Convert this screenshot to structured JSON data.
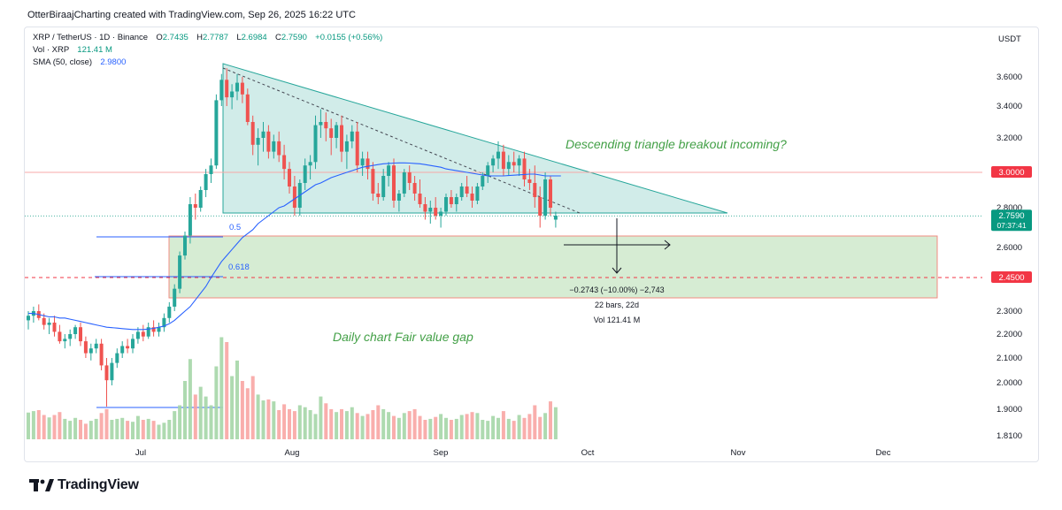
{
  "header": {
    "title": "OtterBiraajCharting created with TradingView.com, Sep 26, 2025 16:22 UTC"
  },
  "legend": {
    "symbol": "XRP / TetherUS · 1D · Binance",
    "o_label": "O",
    "o": "2.7435",
    "h_label": "H",
    "h": "2.7787",
    "l_label": "L",
    "l": "2.6984",
    "c_label": "C",
    "c": "2.7590",
    "change": "+0.0155 (+0.56%)",
    "vol_label": "Vol · XRP",
    "vol_value": "121.41 M",
    "sma_label": "SMA (50, close)",
    "sma_value": "2.9800"
  },
  "branding": {
    "name": "TradingView"
  },
  "colors": {
    "up": "#26a69a",
    "down": "#ef5350",
    "sma": "#2962ff",
    "triangle": "#26a69a",
    "fvg": "#b7e1b4",
    "level": "#f23645"
  },
  "chart_data": {
    "type": "candlestick",
    "currency": "USDT",
    "x_ticks": [
      "Jul",
      "Aug",
      "Sep",
      "Oct",
      "Nov",
      "Dec"
    ],
    "y_ticks": [
      "3.6000",
      "3.4000",
      "3.2000",
      "2.8000",
      "2.6000",
      "2.3000",
      "2.2000",
      "2.1000",
      "2.0000",
      "1.9000",
      "1.8100"
    ],
    "y_tick_values": [
      3.6,
      3.4,
      3.2,
      2.8,
      2.6,
      2.3,
      2.2,
      2.1,
      2.0,
      1.9,
      1.81
    ],
    "price_labels": [
      {
        "value": "3.0000",
        "price": 3.0
      },
      {
        "value": "2.7590",
        "price": 2.759,
        "sub": "07:37:41"
      },
      {
        "value": "2.4500",
        "price": 2.45
      }
    ],
    "fib_levels": [
      {
        "label": "0.5",
        "price": 2.65
      },
      {
        "label": "0.618",
        "price": 2.45
      }
    ],
    "measure": {
      "line1": "−0.2743 (−10.00%) −2,743",
      "line2": "22 bars, 22d",
      "line3": "Vol 121.41 M"
    },
    "annotations": {
      "triangle": "Descending triangle breakout incoming?",
      "fvg": "Daily chart Fair value gap"
    },
    "candles": [
      [
        2.26,
        2.3,
        2.22,
        2.28
      ],
      [
        2.28,
        2.32,
        2.25,
        2.3
      ],
      [
        2.3,
        2.33,
        2.26,
        2.27
      ],
      [
        2.27,
        2.29,
        2.22,
        2.24
      ],
      [
        2.24,
        2.27,
        2.2,
        2.25
      ],
      [
        2.25,
        2.28,
        2.19,
        2.21
      ],
      [
        2.21,
        2.24,
        2.16,
        2.17
      ],
      [
        2.17,
        2.2,
        2.14,
        2.18
      ],
      [
        2.18,
        2.22,
        2.15,
        2.2
      ],
      [
        2.2,
        2.24,
        2.18,
        2.23
      ],
      [
        2.23,
        2.25,
        2.15,
        2.17
      ],
      [
        2.17,
        2.19,
        2.1,
        2.12
      ],
      [
        2.12,
        2.16,
        2.09,
        2.14
      ],
      [
        2.14,
        2.18,
        2.12,
        2.16
      ],
      [
        2.16,
        2.18,
        2.05,
        2.07
      ],
      [
        2.07,
        2.1,
        1.91,
        2.01
      ],
      [
        2.01,
        2.1,
        1.99,
        2.08
      ],
      [
        2.08,
        2.14,
        2.06,
        2.12
      ],
      [
        2.12,
        2.17,
        2.1,
        2.15
      ],
      [
        2.15,
        2.18,
        2.12,
        2.14
      ],
      [
        2.14,
        2.2,
        2.12,
        2.18
      ],
      [
        2.18,
        2.23,
        2.16,
        2.21
      ],
      [
        2.21,
        2.24,
        2.17,
        2.19
      ],
      [
        2.19,
        2.25,
        2.18,
        2.23
      ],
      [
        2.23,
        2.26,
        2.19,
        2.21
      ],
      [
        2.21,
        2.25,
        2.19,
        2.23
      ],
      [
        2.23,
        2.29,
        2.21,
        2.27
      ],
      [
        2.27,
        2.34,
        2.25,
        2.32
      ],
      [
        2.32,
        2.42,
        2.3,
        2.4
      ],
      [
        2.4,
        2.58,
        2.38,
        2.56
      ],
      [
        2.56,
        2.68,
        2.54,
        2.66
      ],
      [
        2.66,
        2.86,
        2.62,
        2.82
      ],
      [
        2.82,
        2.88,
        2.74,
        2.8
      ],
      [
        2.8,
        2.92,
        2.78,
        2.9
      ],
      [
        2.9,
        3.02,
        2.86,
        2.99
      ],
      [
        2.99,
        3.08,
        2.94,
        3.04
      ],
      [
        3.04,
        3.48,
        3.02,
        3.44
      ],
      [
        3.44,
        3.62,
        3.4,
        3.58
      ],
      [
        3.58,
        3.66,
        3.4,
        3.46
      ],
      [
        3.46,
        3.55,
        3.38,
        3.5
      ],
      [
        3.5,
        3.62,
        3.44,
        3.56
      ],
      [
        3.56,
        3.6,
        3.42,
        3.48
      ],
      [
        3.48,
        3.52,
        3.28,
        3.3
      ],
      [
        3.3,
        3.34,
        3.1,
        3.16
      ],
      [
        3.16,
        3.26,
        3.04,
        3.2
      ],
      [
        3.2,
        3.3,
        3.12,
        3.24
      ],
      [
        3.24,
        3.28,
        3.08,
        3.12
      ],
      [
        3.12,
        3.22,
        3.08,
        3.18
      ],
      [
        3.18,
        3.24,
        3.06,
        3.1
      ],
      [
        3.1,
        3.16,
        2.96,
        3.02
      ],
      [
        3.02,
        3.06,
        2.88,
        2.92
      ],
      [
        2.92,
        2.98,
        2.76,
        2.8
      ],
      [
        2.8,
        2.96,
        2.76,
        2.94
      ],
      [
        2.94,
        3.08,
        2.9,
        3.04
      ],
      [
        3.04,
        3.1,
        2.96,
        3.06
      ],
      [
        3.06,
        3.34,
        3.02,
        3.28
      ],
      [
        3.28,
        3.38,
        3.2,
        3.3
      ],
      [
        3.3,
        3.36,
        3.18,
        3.26
      ],
      [
        3.26,
        3.32,
        3.1,
        3.2
      ],
      [
        3.2,
        3.3,
        3.14,
        3.28
      ],
      [
        3.28,
        3.34,
        3.06,
        3.12
      ],
      [
        3.12,
        3.22,
        3.02,
        3.18
      ],
      [
        3.18,
        3.28,
        3.14,
        3.24
      ],
      [
        3.24,
        3.3,
        3.0,
        3.04
      ],
      [
        3.04,
        3.12,
        2.98,
        3.08
      ],
      [
        3.08,
        3.12,
        2.96,
        3.02
      ],
      [
        3.02,
        3.06,
        2.84,
        2.88
      ],
      [
        2.88,
        2.94,
        2.82,
        2.86
      ],
      [
        2.86,
        3.02,
        2.84,
        2.98
      ],
      [
        2.98,
        3.06,
        2.92,
        3.04
      ],
      [
        3.04,
        3.08,
        2.8,
        2.84
      ],
      [
        2.84,
        2.9,
        2.78,
        2.88
      ],
      [
        2.88,
        3.02,
        2.86,
        3.0
      ],
      [
        3.0,
        3.04,
        2.9,
        2.94
      ],
      [
        2.94,
        2.98,
        2.84,
        2.88
      ],
      [
        2.88,
        2.96,
        2.8,
        2.82
      ],
      [
        2.82,
        2.86,
        2.74,
        2.78
      ],
      [
        2.78,
        2.84,
        2.72,
        2.8
      ],
      [
        2.8,
        2.86,
        2.74,
        2.76
      ],
      [
        2.76,
        2.8,
        2.7,
        2.78
      ],
      [
        2.78,
        2.88,
        2.76,
        2.86
      ],
      [
        2.86,
        2.9,
        2.8,
        2.82
      ],
      [
        2.82,
        2.88,
        2.78,
        2.86
      ],
      [
        2.86,
        2.94,
        2.84,
        2.92
      ],
      [
        2.92,
        2.98,
        2.86,
        2.88
      ],
      [
        2.88,
        2.92,
        2.8,
        2.84
      ],
      [
        2.84,
        2.94,
        2.82,
        2.92
      ],
      [
        2.92,
        3.0,
        2.9,
        2.98
      ],
      [
        2.98,
        3.06,
        2.94,
        3.04
      ],
      [
        3.04,
        3.1,
        3.0,
        3.08
      ],
      [
        3.08,
        3.18,
        3.02,
        3.12
      ],
      [
        3.12,
        3.16,
        2.98,
        3.02
      ],
      [
        3.02,
        3.1,
        2.98,
        3.06
      ],
      [
        3.06,
        3.12,
        3.0,
        3.04
      ],
      [
        3.04,
        3.1,
        2.98,
        3.08
      ],
      [
        3.08,
        3.12,
        2.92,
        2.96
      ],
      [
        2.96,
        3.02,
        2.9,
        2.94
      ],
      [
        2.94,
        3.04,
        2.8,
        2.86
      ],
      [
        2.86,
        2.92,
        2.7,
        2.76
      ],
      [
        2.76,
        3.0,
        2.74,
        2.96
      ],
      [
        2.96,
        2.98,
        2.76,
        2.8
      ],
      [
        2.74,
        2.78,
        2.7,
        2.76
      ]
    ],
    "volume": [
      55,
      58,
      60,
      50,
      45,
      50,
      56,
      42,
      38,
      44,
      40,
      32,
      38,
      42,
      54,
      62,
      40,
      42,
      44,
      38,
      36,
      48,
      40,
      42,
      38,
      30,
      34,
      40,
      58,
      70,
      120,
      165,
      92,
      108,
      88,
      70,
      150,
      210,
      200,
      130,
      162,
      120,
      105,
      130,
      92,
      80,
      82,
      78,
      60,
      72,
      62,
      58,
      70,
      66,
      60,
      52,
      88,
      74,
      62,
      56,
      62,
      58,
      66,
      54,
      48,
      52,
      60,
      70,
      62,
      56,
      48,
      44,
      54,
      58,
      62,
      48,
      40,
      42,
      46,
      52,
      44,
      40,
      42,
      50,
      52,
      56,
      54,
      40,
      38,
      48,
      44,
      58,
      42,
      38,
      50,
      44,
      52,
      70,
      46,
      54,
      78,
      66,
      56
    ],
    "sma": [
      2.29,
      2.29,
      2.285,
      2.28,
      2.275,
      2.275,
      2.27,
      2.27,
      2.265,
      2.26,
      2.255,
      2.25,
      2.245,
      2.24,
      2.235,
      2.23,
      2.228,
      2.226,
      2.224,
      2.222,
      2.22,
      2.22,
      2.22,
      2.222,
      2.225,
      2.23,
      2.235,
      2.245,
      2.26,
      2.28,
      2.3,
      2.32,
      2.35,
      2.38,
      2.41,
      2.45,
      2.49,
      2.53,
      2.56,
      2.59,
      2.62,
      2.65,
      2.67,
      2.69,
      2.72,
      2.74,
      2.76,
      2.78,
      2.8,
      2.81,
      2.83,
      2.85,
      2.87,
      2.89,
      2.91,
      2.93,
      2.94,
      2.955,
      2.97,
      2.98,
      2.99,
      3.0,
      3.01,
      3.02,
      3.03,
      3.035,
      3.04,
      3.045,
      3.05,
      3.052,
      3.054,
      3.055,
      3.055,
      3.054,
      3.052,
      3.05,
      3.045,
      3.04,
      3.035,
      3.03,
      3.02,
      3.015,
      3.01,
      3.005,
      3.0,
      2.995,
      2.99,
      2.985,
      2.98,
      2.98,
      2.98,
      2.98,
      2.982,
      2.984,
      2.986,
      2.988,
      2.99,
      2.99,
      2.985,
      2.98,
      2.98,
      2.98,
      2.98
    ]
  }
}
